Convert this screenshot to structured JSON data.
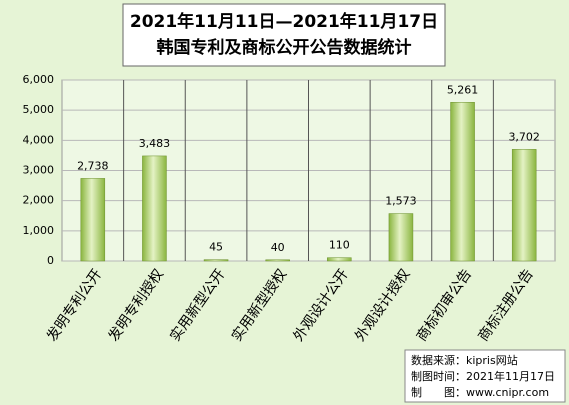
{
  "chart_data": {
    "type": "bar",
    "title": [
      "2021年11月11日—2021年11月17日",
      "韩国专利及商标公开公告数据统计"
    ],
    "categories": [
      "发明专利公开",
      "发明专利授权",
      "实用新型公开",
      "实用新型授权",
      "外观设计公开",
      "外观设计授权",
      "商标初审公告",
      "商标注册公告"
    ],
    "values": [
      2738,
      3483,
      45,
      40,
      110,
      1573,
      5261,
      3702
    ],
    "value_labels": [
      "2,738",
      "3,483",
      "45",
      "40",
      "110",
      "1,573",
      "5,261",
      "3,702"
    ],
    "color": "#8ab53f",
    "ylim": [
      0,
      6000
    ],
    "yticks": [
      0,
      {
        "value": 1000,
        "label": "1,000"
      },
      {
        "value": 2000,
        "label": "2,000"
      },
      {
        "value": 3000,
        "label": "3,000"
      },
      {
        "value": 4000,
        "label": "4,000"
      },
      {
        "value": 5000,
        "label": "5,000"
      },
      {
        "value": 6000,
        "label": "6,000"
      }
    ],
    "grid": true,
    "notes": [
      "数据来源：kipris网站",
      "制图时间：2021年11月17日",
      "制　　图：www.cnipr.com"
    ]
  }
}
